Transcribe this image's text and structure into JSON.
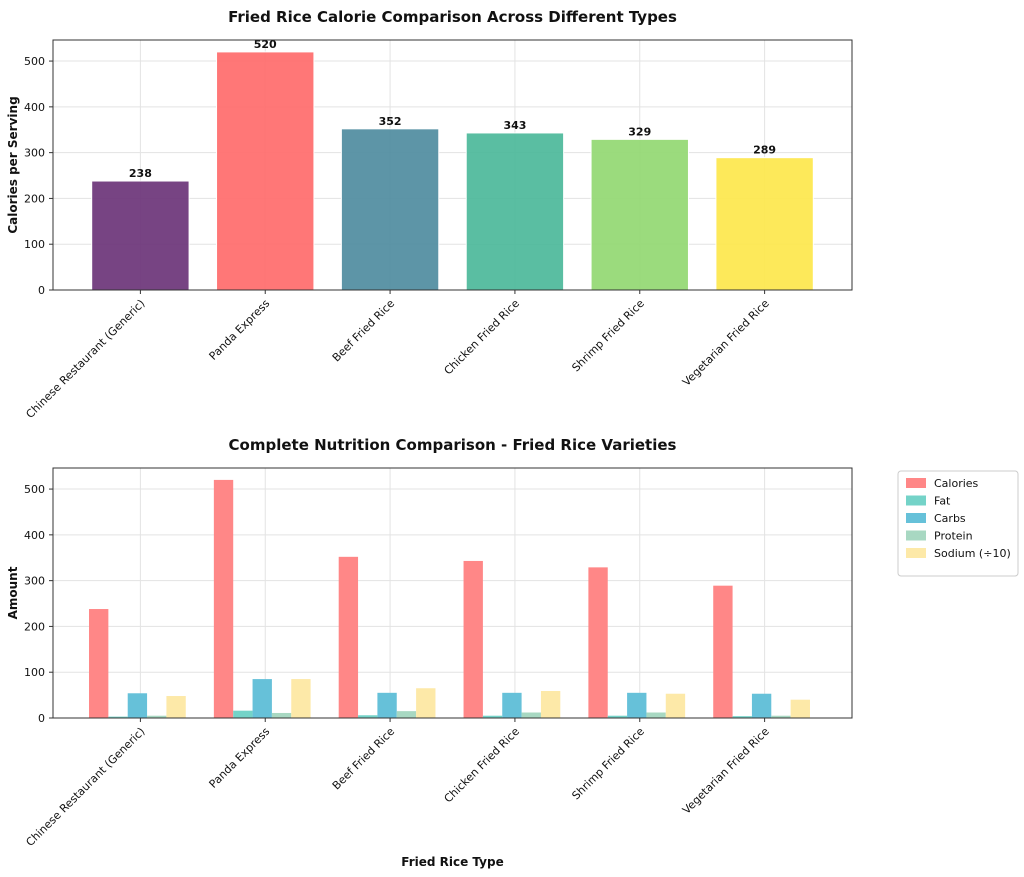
{
  "chart_data": [
    {
      "type": "bar",
      "title": "Fried Rice Calorie Comparison Across Different Types",
      "xlabel": "",
      "ylabel": "Calories per Serving",
      "ylim": [
        0,
        546
      ],
      "yticks": [
        0,
        100,
        200,
        300,
        400,
        500
      ],
      "grid": true,
      "categories": [
        "Chinese Restaurant (Generic)",
        "Panda Express",
        "Beef Fried Rice",
        "Chicken Fried Rice",
        "Shrimp Fried Rice",
        "Vegetarian Fried Rice"
      ],
      "values": [
        238,
        520,
        352,
        343,
        329,
        289
      ],
      "data_labels": [
        "238",
        "520",
        "352",
        "343",
        "329",
        "289"
      ],
      "colors": [
        "#6b3478",
        "#ff6b6b",
        "#4f8c9f",
        "#4cb99a",
        "#93d872",
        "#fde74c"
      ]
    },
    {
      "type": "bar",
      "title": "Complete Nutrition Comparison - Fried Rice Varieties",
      "xlabel": "Fried Rice Type",
      "ylabel": "Amount",
      "ylim": [
        0,
        546
      ],
      "yticks": [
        0,
        100,
        200,
        300,
        400,
        500
      ],
      "grid": true,
      "legend_position": "outside-top-right",
      "categories": [
        "Chinese Restaurant (Generic)",
        "Panda Express",
        "Beef Fried Rice",
        "Chicken Fried Rice",
        "Shrimp Fried Rice",
        "Vegetarian Fried Rice"
      ],
      "series": [
        {
          "name": "Calories",
          "color": "#ff8787",
          "values": [
            238,
            520,
            352,
            343,
            329,
            289
          ]
        },
        {
          "name": "Fat",
          "color": "#74d3c8",
          "values": [
            3,
            16,
            6,
            5,
            5,
            4
          ]
        },
        {
          "name": "Carbs",
          "color": "#66c1d9",
          "values": [
            54,
            85,
            55,
            55,
            55,
            53
          ]
        },
        {
          "name": "Protein",
          "color": "#a8d8c2",
          "values": [
            5,
            11,
            15,
            12,
            12,
            5
          ]
        },
        {
          "name": "Sodium (÷10)",
          "color": "#fde9a8",
          "values": [
            48,
            85,
            65,
            59,
            53,
            40
          ]
        }
      ]
    }
  ]
}
